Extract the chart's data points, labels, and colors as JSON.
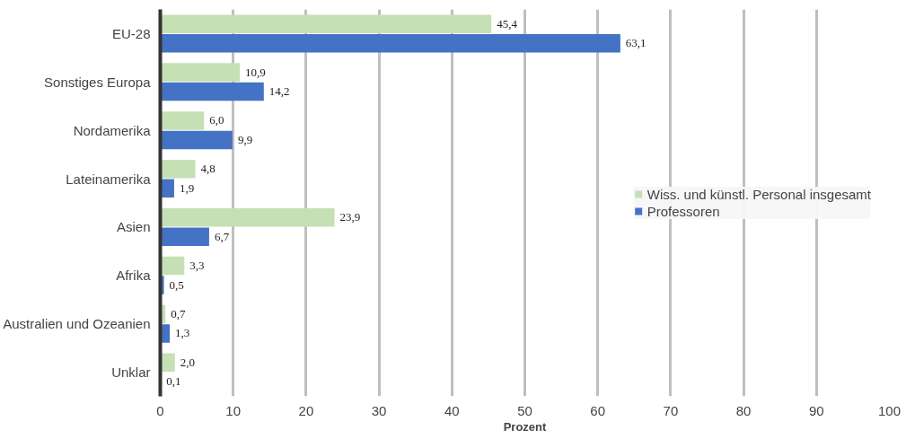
{
  "chart_data": {
    "type": "bar",
    "orientation": "horizontal",
    "xlabel": "Prozent",
    "categories": [
      "EU-28",
      "Sonstiges Europa",
      "Nordamerika",
      "Lateinamerika",
      "Asien",
      "Afrika",
      "Australien und Ozeanien",
      "Unklar"
    ],
    "series": [
      {
        "name": "Wiss. und künstl. Personal insgesamt",
        "color": "#c5e0b4",
        "values": [
          45.4,
          10.9,
          6.0,
          4.8,
          23.9,
          3.3,
          0.7,
          2.0
        ],
        "value_labels": [
          "45,4",
          "10,9",
          "6,0",
          "4,8",
          "23,9",
          "3,3",
          "0,7",
          "2,0"
        ]
      },
      {
        "name": "Professoren",
        "color": "#4472c4",
        "values": [
          63.1,
          14.2,
          9.9,
          1.9,
          6.7,
          0.5,
          1.3,
          0.1
        ],
        "value_labels": [
          "63,1",
          "14,2",
          "9,9",
          "1,9",
          "6,7",
          "0,5",
          "1,3",
          "0,1"
        ]
      }
    ],
    "xlim": [
      0,
      100
    ],
    "xticks": [
      0,
      10,
      20,
      30,
      40,
      50,
      60,
      70,
      80,
      90,
      100
    ],
    "grid": "x",
    "legend": "right"
  }
}
